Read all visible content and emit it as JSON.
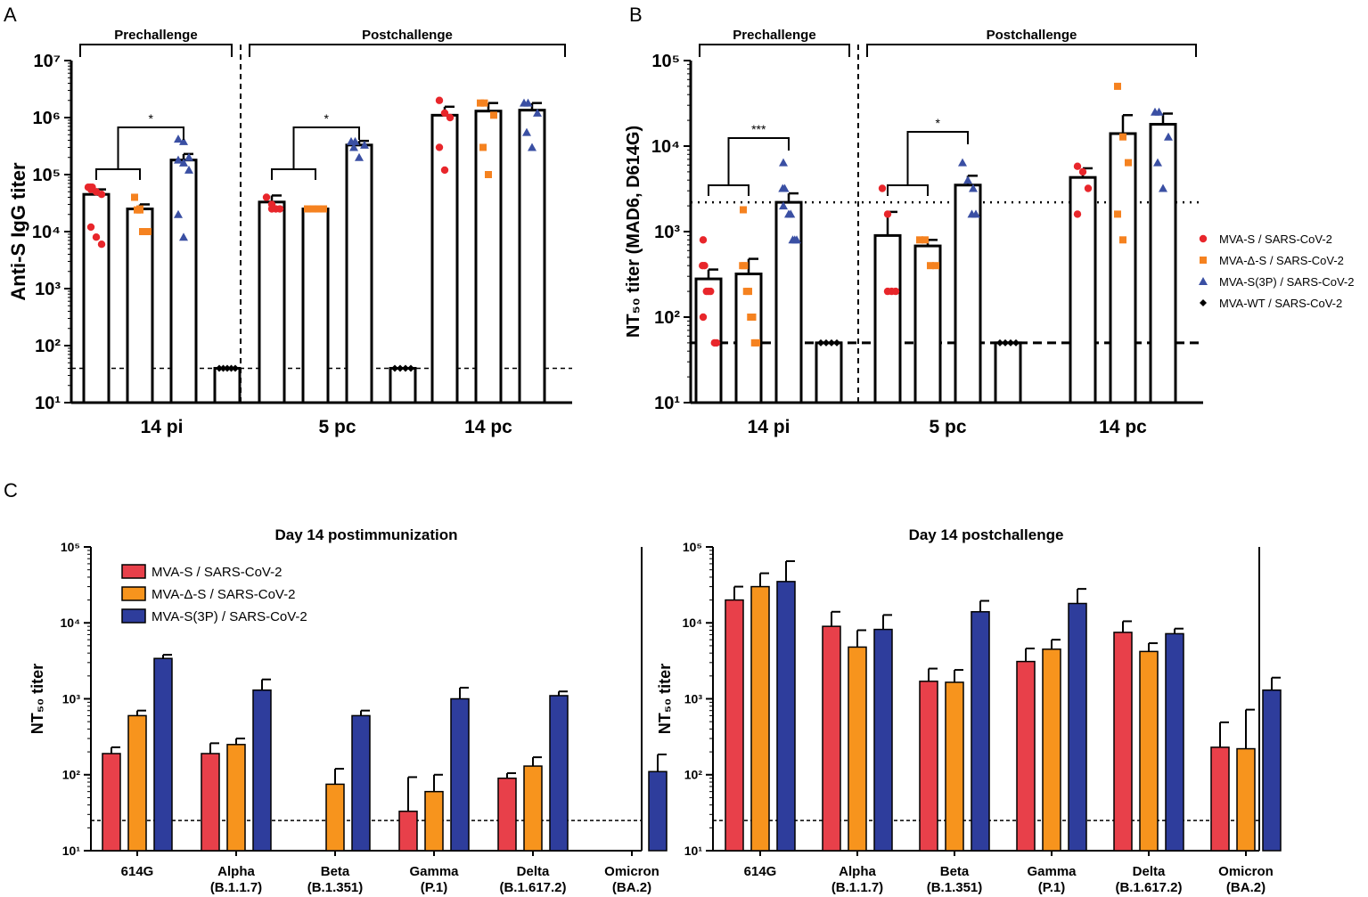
{
  "panel_labels": {
    "a": "A",
    "b": "B",
    "c": "C"
  },
  "legend_ab": [
    {
      "label": "MVA-S / SARS-CoV-2",
      "color": "#e8262b",
      "marker": "circle"
    },
    {
      "label": "MVA-Δ-S / SARS-CoV-2",
      "color": "#f58220",
      "marker": "square"
    },
    {
      "label": "MVA-S(3P) / SARS-CoV-2",
      "color": "#3a4fa3",
      "marker": "triangle"
    },
    {
      "label": "MVA-WT / SARS-CoV-2",
      "color": "#000000",
      "marker": "diamond"
    }
  ],
  "legend_c": [
    {
      "label": "MVA-S / SARS-CoV-2",
      "color": "#e8404a"
    },
    {
      "label": "MVA-Δ-S / SARS-CoV-2",
      "color": "#f7941d"
    },
    {
      "label": "MVA-S(3P) / SARS-CoV-2",
      "color": "#2e3d9c"
    }
  ],
  "chart_data": [
    {
      "id": "A",
      "type": "bar",
      "scale": "log10",
      "ylabel": "Anti-S IgG titer",
      "ylim": [
        10,
        10000000
      ],
      "yticks": [
        "10¹",
        "10²",
        "10³",
        "10⁴",
        "10⁵",
        "10⁶",
        "10⁷"
      ],
      "groups": [
        "14 pi",
        "5 pc",
        "14 pc"
      ],
      "brackets": [
        "Prechallenge",
        "Postchallenge"
      ],
      "threshold": 40,
      "significance": [
        "*",
        "*"
      ],
      "bars": [
        {
          "group": "14 pi",
          "series": "MVA-S / SARS-CoV-2",
          "value": 45000,
          "err": 10000,
          "points": [
            60000,
            60000,
            60000,
            55000,
            50000,
            45000,
            12000,
            8000,
            6000
          ]
        },
        {
          "group": "14 pi",
          "series": "MVA-Δ-S / SARS-CoV-2",
          "value": 25000,
          "err": 5000,
          "points": [
            40000,
            25000,
            24000,
            24000,
            10000,
            10000,
            10000
          ]
        },
        {
          "group": "14 pi",
          "series": "MVA-S(3P) / SARS-CoV-2",
          "value": 180000,
          "err": 50000,
          "points": [
            420000,
            380000,
            200000,
            180000,
            160000,
            120000,
            20000,
            8000
          ]
        },
        {
          "group": "14 pi",
          "series": "MVA-WT / SARS-CoV-2",
          "value": 40,
          "err": 0,
          "points": [
            40,
            40,
            40,
            40,
            40
          ]
        },
        {
          "group": "5 pc",
          "series": "MVA-S / SARS-CoV-2",
          "value": 33000,
          "err": 10000,
          "points": [
            40000,
            30000,
            25000,
            25000,
            25000
          ]
        },
        {
          "group": "5 pc",
          "series": "MVA-Δ-S / SARS-CoV-2",
          "value": 25000,
          "err": 0,
          "points": [
            25000,
            25000,
            25000,
            25000
          ]
        },
        {
          "group": "5 pc",
          "series": "MVA-S(3P) / SARS-CoV-2",
          "value": 330000,
          "err": 60000,
          "points": [
            380000,
            380000,
            330000,
            300000,
            200000
          ]
        },
        {
          "group": "5 pc",
          "series": "MVA-WT / SARS-CoV-2",
          "value": 40,
          "err": 0,
          "points": [
            40,
            40,
            40,
            40
          ]
        },
        {
          "group": "14 pc",
          "series": "MVA-S / SARS-CoV-2",
          "value": 1100000,
          "err": 450000,
          "points": [
            2000000,
            1200000,
            1000000,
            300000,
            120000
          ]
        },
        {
          "group": "14 pc",
          "series": "MVA-Δ-S / SARS-CoV-2",
          "value": 1300000,
          "err": 500000,
          "points": [
            1800000,
            1800000,
            1100000,
            300000,
            100000
          ]
        },
        {
          "group": "14 pc",
          "series": "MVA-S(3P) / SARS-CoV-2",
          "value": 1350000,
          "err": 450000,
          "points": [
            1800000,
            1800000,
            1200000,
            550000,
            300000
          ]
        }
      ]
    },
    {
      "id": "B",
      "type": "bar",
      "scale": "log10",
      "ylabel": "NT₅₀ titer (MAD6, D614G)",
      "ylim": [
        10,
        100000
      ],
      "yticks": [
        "10¹",
        "10²",
        "10³",
        "10⁴",
        "10⁵"
      ],
      "groups": [
        "14 pi",
        "5 pc",
        "14 pc"
      ],
      "brackets": [
        "Prechallenge",
        "Postchallenge"
      ],
      "threshold": 50,
      "dotted_line": 2200,
      "significance": [
        "***",
        "*"
      ],
      "bars": [
        {
          "group": "14 pi",
          "series": "MVA-S / SARS-CoV-2",
          "value": 280,
          "err": 80,
          "points": [
            800,
            400,
            400,
            200,
            200,
            200,
            100,
            50,
            50
          ]
        },
        {
          "group": "14 pi",
          "series": "MVA-Δ-S / SARS-CoV-2",
          "value": 320,
          "err": 160,
          "points": [
            1800,
            400,
            400,
            200,
            200,
            100,
            100,
            50,
            50
          ]
        },
        {
          "group": "14 pi",
          "series": "MVA-S(3P) / SARS-CoV-2",
          "value": 2200,
          "err": 600,
          "points": [
            6400,
            3200,
            3200,
            2000,
            1600,
            1600,
            800,
            800,
            800
          ]
        },
        {
          "group": "14 pi",
          "series": "MVA-WT / SARS-CoV-2",
          "value": 50,
          "err": 0,
          "points": [
            50,
            50,
            50,
            50
          ]
        },
        {
          "group": "5 pc",
          "series": "MVA-S / SARS-CoV-2",
          "value": 900,
          "err": 800,
          "points": [
            3200,
            1600,
            200,
            200,
            200
          ]
        },
        {
          "group": "5 pc",
          "series": "MVA-Δ-S / SARS-CoV-2",
          "value": 680,
          "err": 120,
          "points": [
            800,
            800,
            400,
            400
          ]
        },
        {
          "group": "5 pc",
          "series": "MVA-S(3P) / SARS-CoV-2",
          "value": 3500,
          "err": 1000,
          "points": [
            6400,
            4000,
            3200,
            1600,
            1600
          ]
        },
        {
          "group": "5 pc",
          "series": "MVA-WT / SARS-CoV-2",
          "value": 50,
          "err": 0,
          "points": [
            50,
            50,
            50,
            50
          ]
        },
        {
          "group": "14 pc",
          "series": "MVA-S / SARS-CoV-2",
          "value": 4300,
          "err": 1200,
          "points": [
            5800,
            5000,
            3200,
            1600
          ]
        },
        {
          "group": "14 pc",
          "series": "MVA-Δ-S / SARS-CoV-2",
          "value": 14000,
          "err": 9000,
          "points": [
            50000,
            12800,
            6400,
            1600,
            800
          ]
        },
        {
          "group": "14 pc",
          "series": "MVA-S(3P) / SARS-CoV-2",
          "value": 18000,
          "err": 6000,
          "points": [
            25000,
            25000,
            12800,
            6400,
            3200
          ]
        }
      ]
    },
    {
      "id": "C-left",
      "type": "bar",
      "scale": "log10",
      "title": "Day 14 postimmunization",
      "ylabel": "NT₅₀ titer",
      "ylim": [
        10,
        100000
      ],
      "yticks": [
        "10¹",
        "10²",
        "10³",
        "10⁴",
        "10⁵"
      ],
      "threshold": 25,
      "categories": [
        [
          "614G",
          ""
        ],
        [
          "Alpha",
          "(B.1.1.7)"
        ],
        [
          "Beta",
          "(B.1.351)"
        ],
        [
          "Gamma",
          "(P.1)"
        ],
        [
          "Delta",
          "(B.1.617.2)"
        ],
        [
          "Omicron",
          "(BA.2)"
        ]
      ],
      "series": [
        {
          "name": "MVA-S / SARS-CoV-2",
          "values": [
            190,
            190,
            null,
            33,
            90,
            null
          ],
          "err": [
            40,
            70,
            null,
            60,
            15,
            null
          ]
        },
        {
          "name": "MVA-Δ-S / SARS-CoV-2",
          "values": [
            600,
            250,
            75,
            60,
            130,
            null
          ],
          "err": [
            100,
            50,
            45,
            40,
            40,
            null
          ]
        },
        {
          "name": "MVA-S(3P) / SARS-CoV-2",
          "values": [
            3400,
            1300,
            600,
            1000,
            1100,
            110
          ],
          "err": [
            400,
            500,
            100,
            400,
            150,
            75
          ]
        }
      ]
    },
    {
      "id": "C-right",
      "type": "bar",
      "scale": "log10",
      "title": "Day 14 postchallenge",
      "ylabel": "NT₅₀ titer",
      "ylim": [
        10,
        100000
      ],
      "yticks": [
        "10¹",
        "10²",
        "10³",
        "10⁴",
        "10⁵"
      ],
      "threshold": 25,
      "categories": [
        [
          "614G",
          ""
        ],
        [
          "Alpha",
          "(B.1.1.7)"
        ],
        [
          "Beta",
          "(B.1.351)"
        ],
        [
          "Gamma",
          "(P.1)"
        ],
        [
          "Delta",
          "(B.1.617.2)"
        ],
        [
          "Omicron",
          "(BA.2)"
        ]
      ],
      "series": [
        {
          "name": "MVA-S / SARS-CoV-2",
          "values": [
            20000,
            9000,
            1700,
            3100,
            7500,
            230
          ],
          "err": [
            10000,
            5000,
            800,
            1500,
            3000,
            260
          ]
        },
        {
          "name": "MVA-Δ-S / SARS-CoV-2",
          "values": [
            30000,
            4800,
            1650,
            4500,
            4200,
            220
          ],
          "err": [
            15000,
            3200,
            750,
            1500,
            1200,
            500
          ]
        },
        {
          "name": "MVA-S(3P) / SARS-CoV-2",
          "values": [
            35000,
            8200,
            14000,
            18000,
            7200,
            1300
          ],
          "err": [
            30000,
            4500,
            5500,
            10000,
            1200,
            600
          ]
        }
      ]
    }
  ]
}
